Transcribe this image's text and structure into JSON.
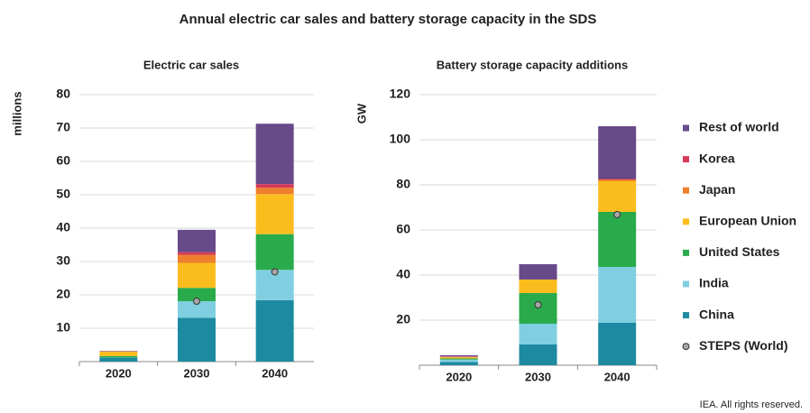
{
  "title": "Annual electric car sales and battery storage capacity in the SDS",
  "note": "IEA. All rights reserved.",
  "legend": [
    {
      "name": "Rest of world",
      "color": "#684a8a"
    },
    {
      "name": "Korea",
      "color": "#d63a58"
    },
    {
      "name": "Japan",
      "color": "#ee7f2d"
    },
    {
      "name": "European Union",
      "color": "#fbbd1e"
    },
    {
      "name": "United States",
      "color": "#2aab4b"
    },
    {
      "name": "India",
      "color": "#80cfe1"
    },
    {
      "name": "China",
      "color": "#1e8aa1"
    },
    {
      "name": "STEPS (World)",
      "color": "#a6a6a6"
    }
  ],
  "chart_data": [
    {
      "type": "bar",
      "stacked": true,
      "title": "Electric car sales",
      "ylabel": "millions",
      "categories": [
        "2020",
        "2030",
        "2040"
      ],
      "series": [
        {
          "values": [
            1.2,
            13.1,
            18.4
          ]
        },
        {
          "values": [
            0.05,
            5,
            9.1
          ]
        },
        {
          "values": [
            0.4,
            4,
            10.7
          ]
        },
        {
          "values": [
            1.3,
            7.5,
            12
          ]
        },
        {
          "values": [
            0.1,
            2.4,
            1.9
          ]
        },
        {
          "values": [
            0.05,
            0.8,
            1.1
          ]
        },
        {
          "values": [
            0.1,
            6.7,
            18.1
          ]
        }
      ],
      "markers": [
        null,
        18.1,
        26.9
      ],
      "ylim": [
        0,
        80
      ],
      "yticks": [
        10,
        20,
        30,
        40,
        50,
        60,
        70,
        80
      ],
      "grid": true
    },
    {
      "type": "bar",
      "stacked": true,
      "title": "Battery storage capacity additions",
      "ylabel": "GW",
      "categories": [
        "2020",
        "2030",
        "2040"
      ],
      "series": [
        {
          "values": [
            1.5,
            9.2,
            18.8
          ]
        },
        {
          "values": [
            1,
            9.2,
            24.8
          ]
        },
        {
          "values": [
            0.5,
            13.6,
            24.4
          ]
        },
        {
          "values": [
            0.5,
            6,
            13.6
          ]
        },
        {
          "values": [
            0.2,
            0,
            0.8
          ]
        },
        {
          "values": [
            0.2,
            0,
            0.2
          ]
        },
        {
          "values": [
            0.5,
            6.8,
            23.4
          ]
        }
      ],
      "markers": [
        null,
        26.8,
        66.8
      ],
      "ylim": [
        0,
        120
      ],
      "yticks": [
        20,
        40,
        60,
        80,
        100,
        120
      ],
      "grid": true
    }
  ]
}
